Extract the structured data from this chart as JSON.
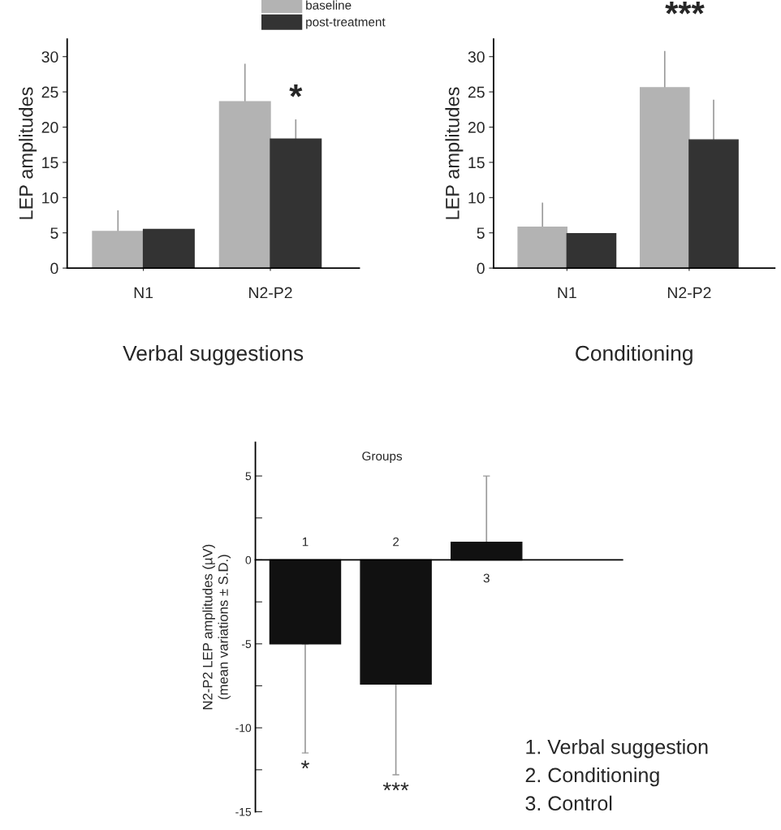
{
  "chart_data": [
    {
      "type": "bar",
      "title": "Verbal suggestions",
      "ylabel": "LEP amplitudes",
      "categories": [
        "N1",
        "N2-P2"
      ],
      "ylim": [
        0,
        32.5
      ],
      "yticks": [
        0,
        5,
        10,
        15,
        20,
        25,
        30
      ],
      "legend": "top right",
      "series": [
        {
          "name": "baseline",
          "color": "#b3b3b3",
          "values": [
            5.2,
            23.6
          ],
          "errors": [
            [
              5.2,
              8.2
            ],
            [
              23.6,
              29.0
            ]
          ]
        },
        {
          "name": "post-treatment",
          "color": "#333333",
          "values": [
            5.5,
            18.3
          ],
          "errors": [
            null,
            [
              18.3,
              21.1
            ]
          ]
        }
      ],
      "annotations": [
        {
          "text": "*",
          "x": "N2-P2",
          "y": 21.1
        }
      ]
    },
    {
      "type": "bar",
      "title": "Conditioning",
      "ylabel": "LEP amplitudes",
      "categories": [
        "N1",
        "N2-P2"
      ],
      "ylim": [
        0,
        32.5
      ],
      "yticks": [
        0,
        5,
        10,
        15,
        20,
        25,
        30
      ],
      "series": [
        {
          "color": "#b3b3b3",
          "values": [
            5.8,
            25.6
          ],
          "errors": [
            [
              5.8,
              9.3
            ],
            [
              25.6,
              30.8
            ]
          ]
        },
        {
          "color": "#333333",
          "values": [
            4.9,
            18.2
          ],
          "errors": [
            null,
            [
              18.2,
              23.9
            ]
          ]
        }
      ],
      "annotations": [
        "***"
      ]
    },
    {
      "type": "bar",
      "xlabel": "Groups",
      "ylabel": "N2-P2 LEP amplitudes (µV)\n(mean variations ± S.D.)",
      "categories": [
        "1",
        "2",
        "3"
      ],
      "ylim": [
        -15,
        7
      ],
      "yticks": [
        -15,
        {
          "value": -12.5,
          "label": null
        },
        -10,
        {
          "value": -7.5,
          "label": null
        },
        -5,
        {
          "value": -2.5,
          "label": null
        },
        0,
        {
          "value": 2.5,
          "label": null
        },
        5
      ],
      "series": [
        {
          "color": "#111111",
          "values": [
            -5.0,
            -7.4,
            1.05
          ],
          "errors": [
            [
              -11.5,
              -5.0
            ],
            [
              -12.8,
              -7.4
            ],
            [
              1.05,
              5.0
            ]
          ]
        }
      ],
      "annotations": [
        {
          "text": "*",
          "x": "1",
          "y": -11.5
        },
        {
          "text": "***",
          "x": "2",
          "y": -12.8
        },
        "1. Verbal suggestion",
        "2. Conditioning",
        "3. Control"
      ]
    }
  ]
}
